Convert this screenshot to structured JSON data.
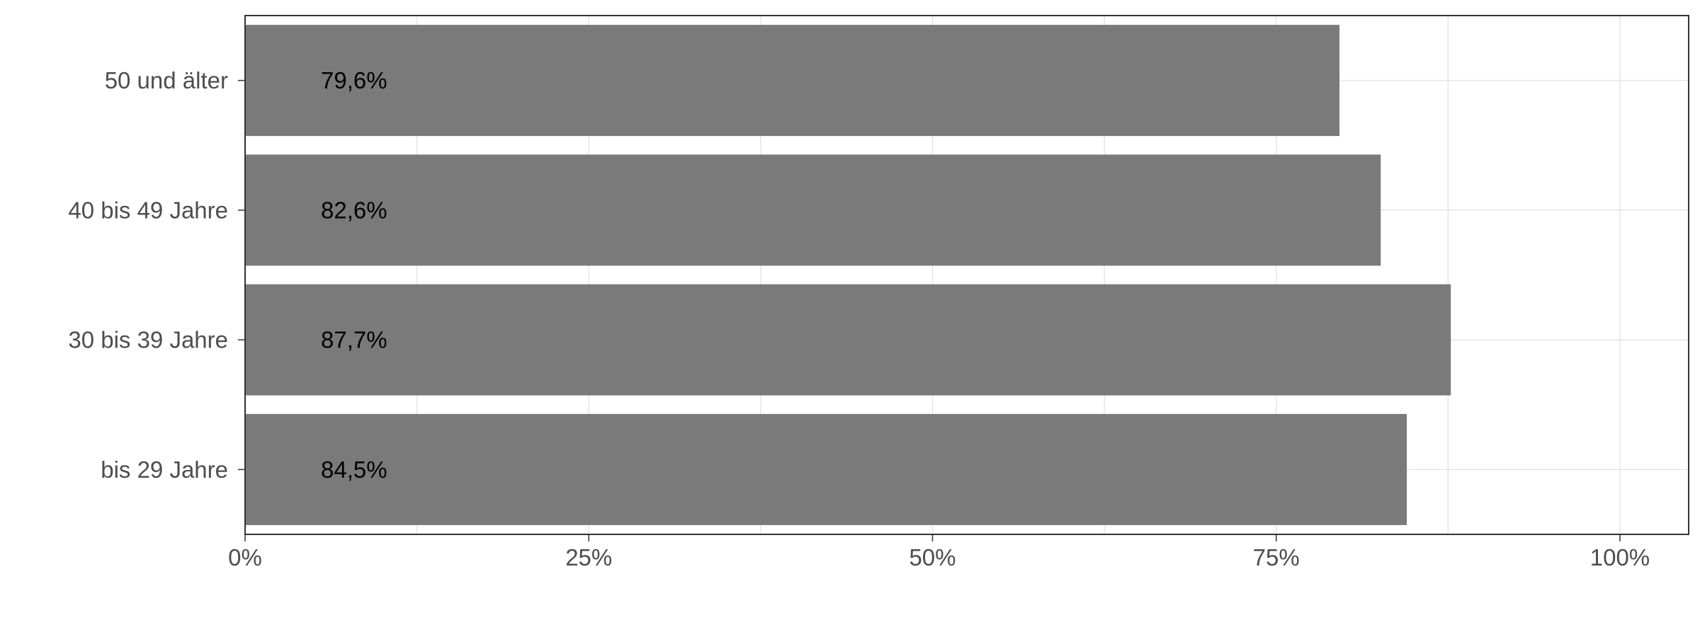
{
  "chart_data": {
    "type": "bar",
    "orientation": "horizontal",
    "title": "",
    "xlabel": "",
    "ylabel": "",
    "categories": [
      "50 und älter",
      "40 bis 49 Jahre",
      "30 bis 39 Jahre",
      "bis 29 Jahre"
    ],
    "values": [
      79.6,
      82.6,
      87.7,
      84.5
    ],
    "value_labels": [
      "79,6%",
      "82,6%",
      "87,7%",
      "84,5%"
    ],
    "xlim": [
      0,
      105
    ],
    "x_ticks": [
      0,
      25,
      50,
      75,
      100
    ],
    "x_tick_labels": [
      "0%",
      "25%",
      "50%",
      "75%",
      "100%"
    ],
    "grid": true,
    "legend": "none",
    "colors": {
      "bar": "#7a7a7a",
      "grid": "#e5e5e5",
      "axis": "#333333",
      "tick_text": "#4d4d4d",
      "label_text": "#000000"
    }
  }
}
